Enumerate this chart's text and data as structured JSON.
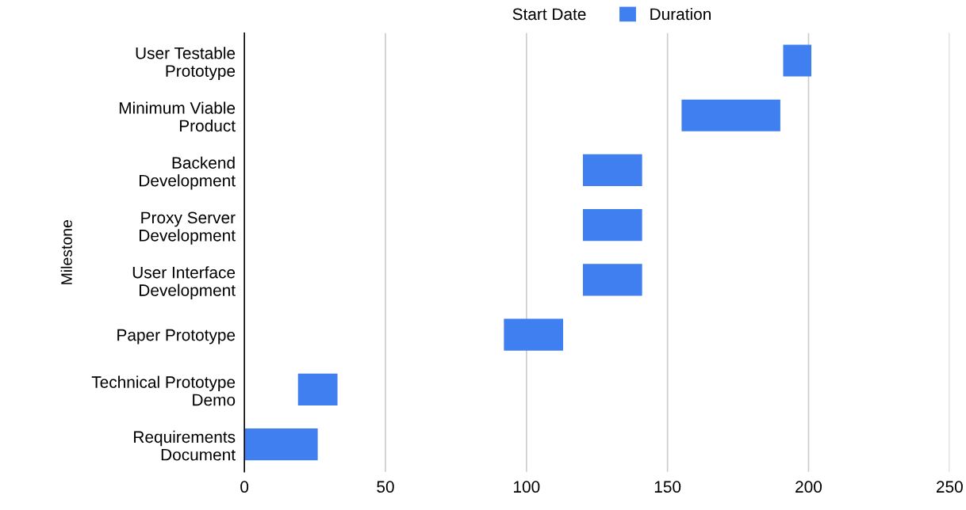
{
  "chart_data": {
    "type": "bar",
    "orientation": "horizontal",
    "ylabel": "Milestone",
    "categories": [
      "User Testable\nPrototype",
      "Minimum Viable\nProduct",
      "Backend\nDevelopment",
      "Proxy Server\nDevelopment",
      "User Interface\nDevelopment",
      "Paper Prototype",
      "Technical Prototype\nDemo",
      "Requirements\nDocument"
    ],
    "series": [
      {
        "name": "Duration",
        "color": "#3f7ff0",
        "base": [
          191,
          155,
          120,
          120,
          120,
          92,
          19,
          0
        ],
        "values": [
          10,
          35,
          21,
          21,
          21,
          21,
          14,
          26
        ]
      }
    ],
    "annotations": [
      "Start Date"
    ],
    "xlim": [
      0,
      250
    ],
    "xticks": [
      0,
      50,
      100,
      150,
      200,
      250
    ],
    "grid": "x",
    "legend": "top"
  }
}
